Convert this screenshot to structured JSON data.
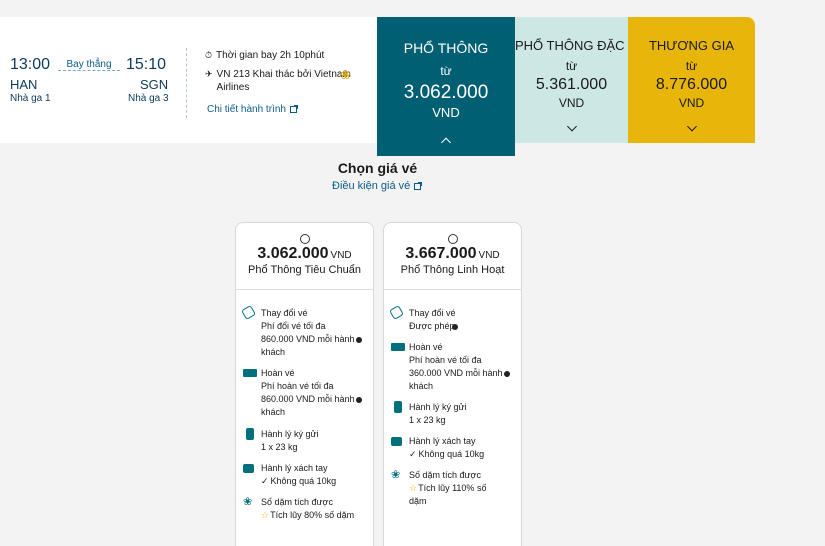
{
  "flight": {
    "dep_time": "13:00",
    "arr_time": "15:10",
    "dep_code": "HAN",
    "arr_code": "SGN",
    "dep_terminal": "Nhà ga 1",
    "arr_terminal": "Nhà ga 3",
    "direct_label": "Bay thẳng",
    "duration": "Thời gian bay 2h 10phút",
    "flight_info": "VN 213 Khai thác bởi Vietnam Airlines",
    "detail_link": "Chi tiết hành trình"
  },
  "classes": [
    {
      "name": "PHỔ THÔNG",
      "from": "từ",
      "price": "3.062.000",
      "currency": "VND",
      "color": "#005f73"
    },
    {
      "name": "PHỔ THÔNG ĐẶC BIỆT",
      "from": "từ",
      "price": "5.361.000",
      "currency": "VND",
      "color": "#cde7e5"
    },
    {
      "name": "THƯƠNG GIA",
      "from": "từ",
      "price": "8.776.000",
      "currency": "VND",
      "color": "#e8b60a"
    }
  ],
  "choose": {
    "title": "Chọn giá vé",
    "conditions_link": "Điều kiện giá vé"
  },
  "fares": [
    {
      "price": "3.062.000",
      "currency": "VND",
      "name": "Phổ Thông Tiêu Chuẩn",
      "change_title": "Thay đổi vé",
      "change_detail": "Phí đổi vé tối đa 860.000 VND mỗi hành khách",
      "refund_title": "Hoàn vé",
      "refund_detail": "Phí hoàn vé tối đa 860.000 VND mỗi hành khách",
      "checked_title": "Hành lý ký gửi",
      "checked_detail": "1 x 23 kg",
      "carry_title": "Hành lý xách tay",
      "carry_detail": "Không quá 10kg",
      "miles_title": "Số dặm tích được",
      "miles_detail": "Tích lũy 80% số dặm"
    },
    {
      "price": "3.667.000",
      "currency": "VND",
      "name": "Phổ Thông Linh Hoạt",
      "change_title": "Thay đổi vé",
      "change_detail": "Được phép",
      "refund_title": "Hoàn vé",
      "refund_detail": "Phí hoàn vé tối đa 360.000 VND mỗi hành khách",
      "checked_title": "Hành lý ký gửi",
      "checked_detail": "1 x 23 kg",
      "carry_title": "Hành lý xách tay",
      "carry_detail": "Không quá 10kg",
      "miles_title": "Số dặm tích được",
      "miles_detail": "Tích lũy 110% số dặm"
    }
  ]
}
